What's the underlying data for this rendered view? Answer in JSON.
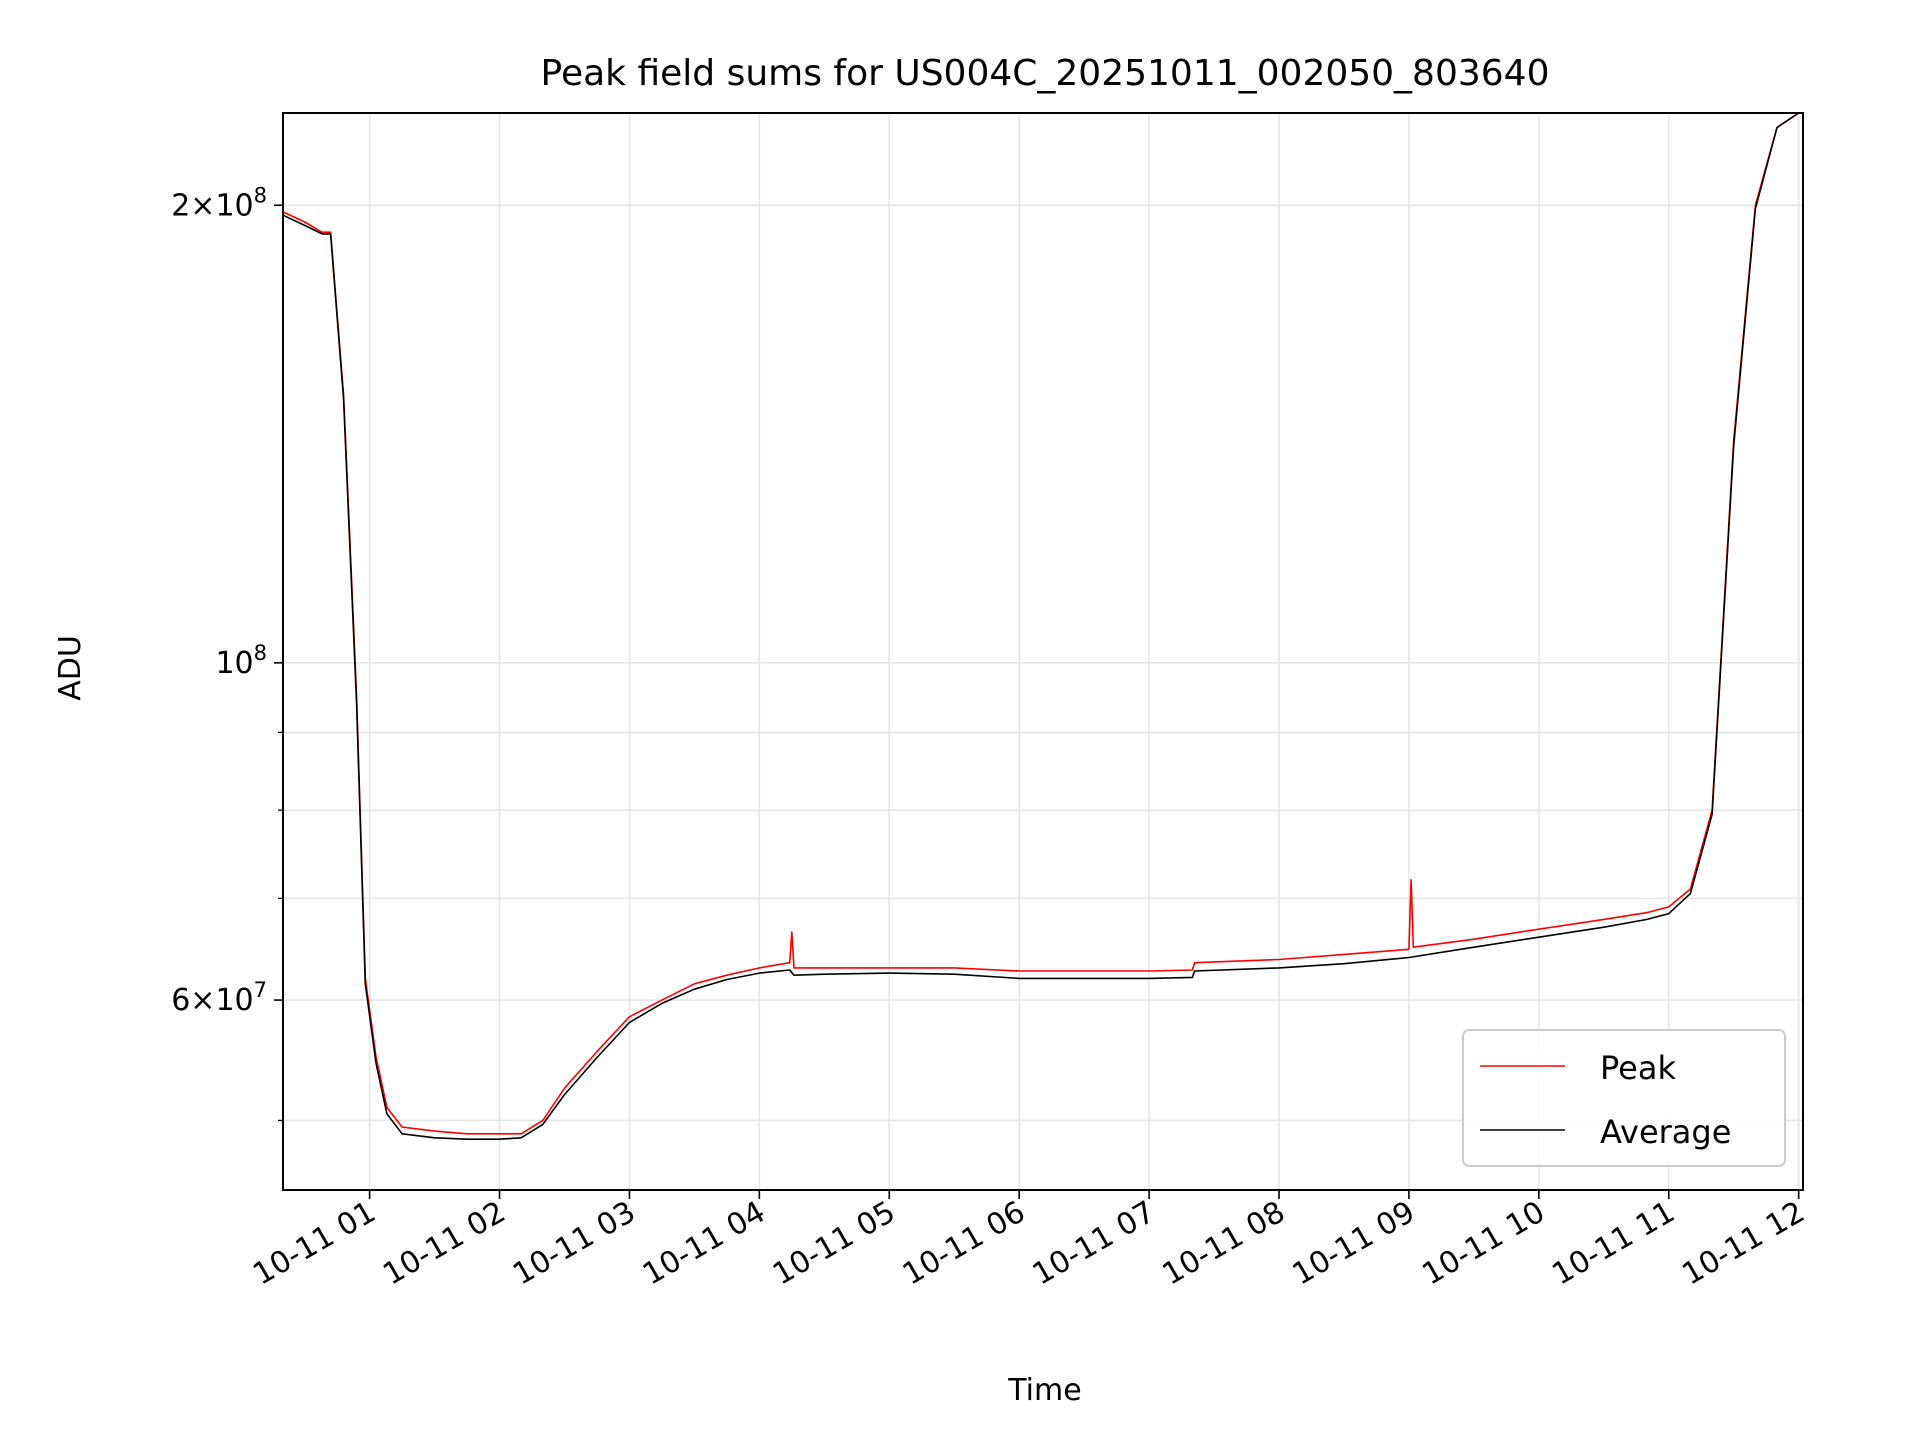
{
  "chart_data": {
    "type": "line",
    "title": "Peak field sums for US004C_20251011_002050_803640",
    "xlabel": "Time",
    "ylabel": "ADU",
    "yscale": "log",
    "xlim": [
      "2025-10-11 00:20",
      "2025-10-11 12:02"
    ],
    "ylim": [
      45000000,
      230000000
    ],
    "grid": true,
    "legend_position": "lower right",
    "x_tick_labels": [
      "10-11 01",
      "10-11 02",
      "10-11 03",
      "10-11 04",
      "10-11 05",
      "10-11 06",
      "10-11 07",
      "10-11 08",
      "10-11 09",
      "10-11 10",
      "10-11 11",
      "10-11 12"
    ],
    "x_tick_times": [
      "2025-10-11 01:00",
      "2025-10-11 02:00",
      "2025-10-11 03:00",
      "2025-10-11 04:00",
      "2025-10-11 05:00",
      "2025-10-11 06:00",
      "2025-10-11 07:00",
      "2025-10-11 08:00",
      "2025-10-11 09:00",
      "2025-10-11 10:00",
      "2025-10-11 11:00",
      "2025-10-11 12:00"
    ],
    "y_major_ticks": [
      {
        "value": 200000000,
        "mantissa": "2",
        "exponent": "8"
      },
      {
        "value": 100000000,
        "mantissa": "",
        "exponent": "8"
      },
      {
        "value": 60000000,
        "mantissa": "6",
        "exponent": "7"
      }
    ],
    "y_minor_ticks": [
      50000000,
      70000000,
      80000000,
      90000000
    ],
    "series": [
      {
        "name": "Peak",
        "color": "#ff0000",
        "x": [
          "2025-10-11 00:20",
          "2025-10-11 00:30",
          "2025-10-11 00:38",
          "2025-10-11 00:42",
          "2025-10-11 00:48",
          "2025-10-11 00:54",
          "2025-10-11 00:58",
          "2025-10-11 01:03",
          "2025-10-11 01:08",
          "2025-10-11 01:15",
          "2025-10-11 01:30",
          "2025-10-11 01:45",
          "2025-10-11 02:00",
          "2025-10-11 02:10",
          "2025-10-11 02:20",
          "2025-10-11 02:30",
          "2025-10-11 02:45",
          "2025-10-11 03:00",
          "2025-10-11 03:15",
          "2025-10-11 03:30",
          "2025-10-11 03:45",
          "2025-10-11 04:00",
          "2025-10-11 04:14",
          "2025-10-11 04:15",
          "2025-10-11 04:16",
          "2025-10-11 04:30",
          "2025-10-11 05:00",
          "2025-10-11 05:30",
          "2025-10-11 06:00",
          "2025-10-11 06:30",
          "2025-10-11 07:00",
          "2025-10-11 07:20",
          "2025-10-11 07:21",
          "2025-10-11 08:00",
          "2025-10-11 08:30",
          "2025-10-11 09:00",
          "2025-10-11 09:01",
          "2025-10-11 09:02",
          "2025-10-11 09:30",
          "2025-10-11 10:00",
          "2025-10-11 10:30",
          "2025-10-11 10:50",
          "2025-10-11 11:00",
          "2025-10-11 11:10",
          "2025-10-11 11:20",
          "2025-10-11 11:30",
          "2025-10-11 11:40",
          "2025-10-11 11:50",
          "2025-10-11 12:00"
        ],
        "y": [
          198000000,
          195000000,
          192000000,
          192000000,
          150000000,
          95000000,
          62000000,
          55000000,
          51000000,
          49500000,
          49200000,
          49000000,
          49000000,
          49000000,
          50000000,
          52500000,
          55500000,
          58500000,
          60000000,
          61500000,
          62300000,
          63000000,
          63500000,
          66500000,
          63000000,
          63000000,
          63000000,
          63000000,
          62700000,
          62700000,
          62700000,
          62800000,
          63500000,
          63800000,
          64300000,
          64800000,
          72000000,
          65000000,
          65800000,
          66800000,
          67800000,
          68500000,
          69100000,
          71000000,
          80000000,
          140000000,
          200000000,
          225000000,
          230000000
        ]
      },
      {
        "name": "Average",
        "color": "#000000",
        "x": [
          "2025-10-11 00:20",
          "2025-10-11 00:30",
          "2025-10-11 00:38",
          "2025-10-11 00:42",
          "2025-10-11 00:48",
          "2025-10-11 00:54",
          "2025-10-11 00:58",
          "2025-10-11 01:03",
          "2025-10-11 01:08",
          "2025-10-11 01:15",
          "2025-10-11 01:30",
          "2025-10-11 01:45",
          "2025-10-11 02:00",
          "2025-10-11 02:10",
          "2025-10-11 02:20",
          "2025-10-11 02:30",
          "2025-10-11 02:45",
          "2025-10-11 03:00",
          "2025-10-11 03:15",
          "2025-10-11 03:30",
          "2025-10-11 03:45",
          "2025-10-11 04:00",
          "2025-10-11 04:14",
          "2025-10-11 04:16",
          "2025-10-11 04:30",
          "2025-10-11 05:00",
          "2025-10-11 05:30",
          "2025-10-11 06:00",
          "2025-10-11 06:30",
          "2025-10-11 07:00",
          "2025-10-11 07:20",
          "2025-10-11 07:21",
          "2025-10-11 08:00",
          "2025-10-11 08:30",
          "2025-10-11 09:00",
          "2025-10-11 09:30",
          "2025-10-11 10:00",
          "2025-10-11 10:30",
          "2025-10-11 10:50",
          "2025-10-11 11:00",
          "2025-10-11 11:10",
          "2025-10-11 11:20",
          "2025-10-11 11:30",
          "2025-10-11 11:40",
          "2025-10-11 11:50",
          "2025-10-11 12:00"
        ],
        "y": [
          197000000,
          194000000,
          191500000,
          191500000,
          149000000,
          94000000,
          61500000,
          54500000,
          50500000,
          49000000,
          48700000,
          48600000,
          48600000,
          48700000,
          49700000,
          52000000,
          55000000,
          58000000,
          59700000,
          61000000,
          61900000,
          62500000,
          62800000,
          62300000,
          62400000,
          62500000,
          62400000,
          62000000,
          62000000,
          62000000,
          62100000,
          62700000,
          63000000,
          63400000,
          64000000,
          65000000,
          66000000,
          67000000,
          67800000,
          68400000,
          70500000,
          79500000,
          139000000,
          199000000,
          225000000,
          230000000
        ]
      }
    ]
  }
}
